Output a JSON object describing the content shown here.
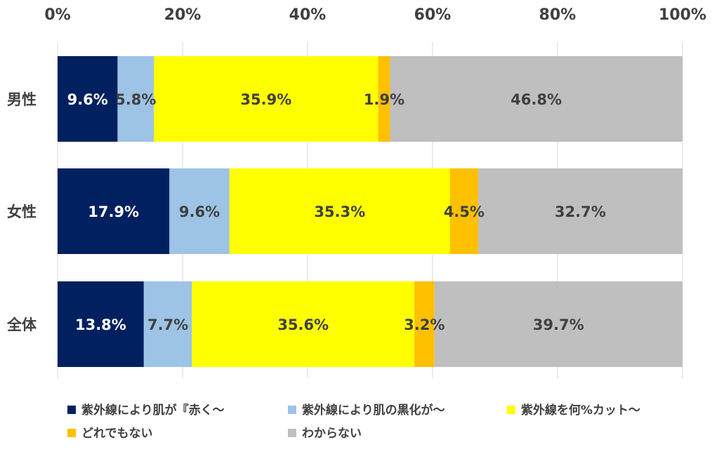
{
  "chart_data": {
    "type": "bar",
    "orientation": "horizontal",
    "stacked": true,
    "percent_stacked": true,
    "title": "",
    "xlabel": "",
    "ylabel": "",
    "xlim": [
      0,
      100
    ],
    "x_ticks": [
      0,
      20,
      40,
      60,
      80,
      100
    ],
    "x_tick_labels": [
      "0%",
      "20%",
      "40%",
      "60%",
      "80%",
      "100%"
    ],
    "x_axis_position": "top",
    "grid": "vertical",
    "legend_position": "bottom",
    "categories": [
      "男性",
      "女性",
      "全体"
    ],
    "series": [
      {
        "name": "紫外線により肌が『赤く～",
        "color": "#002060",
        "label_color": "#ffffff",
        "values": [
          9.6,
          17.9,
          13.8
        ],
        "labels": [
          "9.6%",
          "17.9%",
          "13.8%"
        ]
      },
      {
        "name": "紫外線により肌の黒化が～",
        "color": "#9dc3e6",
        "label_color": "#404040",
        "values": [
          5.8,
          9.6,
          7.7
        ],
        "labels": [
          "5.8%",
          "9.6%",
          "7.7%"
        ]
      },
      {
        "name": "紫外線を何%カット～",
        "color": "#ffff00",
        "label_color": "#404040",
        "values": [
          35.9,
          35.3,
          35.6
        ],
        "labels": [
          "35.9%",
          "35.3%",
          "35.6%"
        ]
      },
      {
        "name": "どれでもない",
        "color": "#ffc000",
        "label_color": "#404040",
        "values": [
          1.9,
          4.5,
          3.2
        ],
        "labels": [
          "1.9%",
          "4.5%",
          "3.2%"
        ]
      },
      {
        "name": "わからない",
        "color": "#bfbfbf",
        "label_color": "#404040",
        "values": [
          46.8,
          32.7,
          39.7
        ],
        "labels": [
          "46.8%",
          "32.7%",
          "39.7%"
        ]
      }
    ]
  }
}
